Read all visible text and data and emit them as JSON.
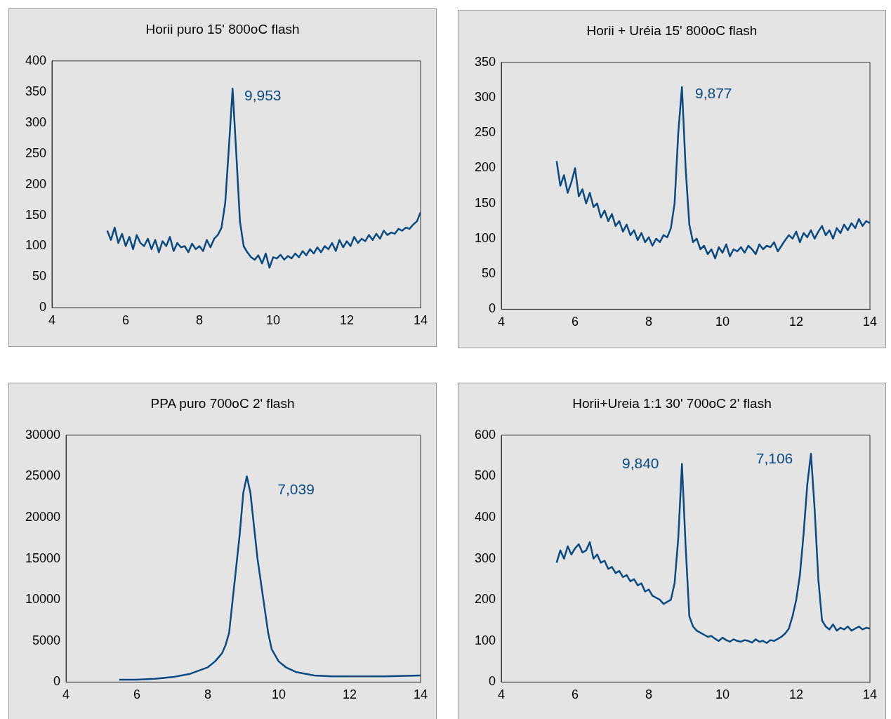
{
  "chart_data": [
    {
      "type": "line",
      "title": "Horii puro  15' 800oC flash",
      "color": "#0b4a80",
      "marker": "none",
      "xlim": [
        4,
        14
      ],
      "xticks": [
        4,
        6,
        8,
        10,
        12,
        14
      ],
      "ylim": [
        0,
        400
      ],
      "yticks": [
        0,
        50,
        100,
        150,
        200,
        250,
        300,
        350,
        400
      ],
      "x": [
        5.5,
        5.6,
        5.7,
        5.8,
        5.9,
        6.0,
        6.1,
        6.2,
        6.3,
        6.4,
        6.5,
        6.6,
        6.7,
        6.8,
        6.9,
        7.0,
        7.1,
        7.2,
        7.3,
        7.4,
        7.5,
        7.6,
        7.7,
        7.8,
        7.9,
        8.0,
        8.1,
        8.2,
        8.3,
        8.4,
        8.5,
        8.6,
        8.7,
        8.8,
        8.9,
        9.0,
        9.1,
        9.2,
        9.3,
        9.4,
        9.5,
        9.6,
        9.7,
        9.8,
        9.9,
        10.0,
        10.1,
        10.2,
        10.3,
        10.4,
        10.5,
        10.6,
        10.7,
        10.8,
        10.9,
        11.0,
        11.1,
        11.2,
        11.3,
        11.4,
        11.5,
        11.6,
        11.7,
        11.8,
        11.9,
        12.0,
        12.1,
        12.2,
        12.3,
        12.4,
        12.5,
        12.6,
        12.7,
        12.8,
        12.9,
        13.0,
        13.1,
        13.2,
        13.3,
        13.4,
        13.5,
        13.6,
        13.7,
        13.8,
        13.9,
        14.0
      ],
      "values": [
        125,
        110,
        130,
        105,
        120,
        100,
        115,
        95,
        118,
        105,
        100,
        112,
        95,
        110,
        90,
        108,
        100,
        115,
        92,
        105,
        98,
        100,
        90,
        104,
        95,
        100,
        92,
        110,
        98,
        112,
        118,
        130,
        170,
        260,
        355,
        250,
        140,
        100,
        90,
        82,
        78,
        85,
        72,
        88,
        65,
        82,
        80,
        86,
        78,
        84,
        80,
        88,
        82,
        92,
        85,
        95,
        88,
        98,
        90,
        100,
        95,
        105,
        92,
        110,
        98,
        108,
        100,
        115,
        105,
        112,
        108,
        118,
        110,
        120,
        112,
        125,
        118,
        122,
        120,
        128,
        125,
        130,
        128,
        135,
        140,
        155
      ],
      "annotations": [
        {
          "text": "9,953",
          "x": 8.9,
          "y": 355
        }
      ]
    },
    {
      "type": "line",
      "title": "Horii + Uréia 15'  800oC flash",
      "color": "#0b4a80",
      "marker": "none",
      "xlim": [
        4,
        14
      ],
      "xticks": [
        4,
        6,
        8,
        10,
        12,
        14
      ],
      "ylim": [
        0,
        350
      ],
      "yticks": [
        0,
        50,
        100,
        150,
        200,
        250,
        300,
        350
      ],
      "x": [
        5.5,
        5.6,
        5.7,
        5.8,
        5.9,
        6.0,
        6.1,
        6.2,
        6.3,
        6.4,
        6.5,
        6.6,
        6.7,
        6.8,
        6.9,
        7.0,
        7.1,
        7.2,
        7.3,
        7.4,
        7.5,
        7.6,
        7.7,
        7.8,
        7.9,
        8.0,
        8.1,
        8.2,
        8.3,
        8.4,
        8.5,
        8.6,
        8.7,
        8.8,
        8.9,
        9.0,
        9.1,
        9.2,
        9.3,
        9.4,
        9.5,
        9.6,
        9.7,
        9.8,
        9.9,
        10.0,
        10.1,
        10.2,
        10.3,
        10.4,
        10.5,
        10.6,
        10.7,
        10.8,
        10.9,
        11.0,
        11.1,
        11.2,
        11.3,
        11.4,
        11.5,
        11.6,
        11.7,
        11.8,
        11.9,
        12.0,
        12.1,
        12.2,
        12.3,
        12.4,
        12.5,
        12.6,
        12.7,
        12.8,
        12.9,
        13.0,
        13.1,
        13.2,
        13.3,
        13.4,
        13.5,
        13.6,
        13.7,
        13.8,
        13.9,
        14.0
      ],
      "values": [
        210,
        175,
        190,
        165,
        180,
        200,
        160,
        170,
        150,
        165,
        145,
        150,
        130,
        140,
        125,
        135,
        118,
        125,
        110,
        120,
        105,
        112,
        98,
        108,
        95,
        102,
        90,
        100,
        95,
        105,
        102,
        115,
        150,
        250,
        315,
        200,
        120,
        95,
        100,
        85,
        90,
        78,
        85,
        72,
        88,
        80,
        92,
        75,
        85,
        82,
        88,
        80,
        90,
        85,
        78,
        92,
        85,
        90,
        88,
        95,
        82,
        90,
        98,
        105,
        100,
        110,
        95,
        108,
        102,
        112,
        100,
        110,
        118,
        105,
        112,
        100,
        115,
        108,
        120,
        112,
        122,
        115,
        128,
        118,
        125,
        122
      ],
      "annotations": [
        {
          "text": "9,877",
          "x": 8.9,
          "y": 315
        }
      ]
    },
    {
      "type": "line",
      "title": "PPA puro 700oC 2' flash",
      "color": "#0b4a80",
      "marker": "none",
      "xlim": [
        4,
        14
      ],
      "xticks": [
        4,
        6,
        8,
        10,
        12,
        14
      ],
      "ylim": [
        0,
        30000
      ],
      "yticks": [
        0,
        5000,
        10000,
        15000,
        20000,
        25000,
        30000
      ],
      "x": [
        5.5,
        6,
        6.5,
        7,
        7.5,
        8,
        8.2,
        8.4,
        8.5,
        8.6,
        8.7,
        8.8,
        8.9,
        9.0,
        9.1,
        9.2,
        9.3,
        9.4,
        9.5,
        9.6,
        9.7,
        9.8,
        10,
        10.2,
        10.5,
        11,
        11.5,
        12,
        13,
        14
      ],
      "values": [
        300,
        300,
        400,
        600,
        1000,
        1800,
        2500,
        3500,
        4500,
        6000,
        10000,
        14000,
        18000,
        23000,
        25000,
        23000,
        19000,
        15000,
        12000,
        9000,
        6000,
        4000,
        2500,
        1800,
        1200,
        800,
        700,
        700,
        700,
        800
      ],
      "annotations": [
        {
          "text": "7,039",
          "x": 9.1,
          "y": 25000
        }
      ]
    },
    {
      "type": "line",
      "title": "Horii+Ureia 1:1 30' 700oC 2' flash",
      "color": "#0b4a80",
      "marker": "none",
      "xlim": [
        4,
        14
      ],
      "xticks": [
        4,
        6,
        8,
        10,
        12,
        14
      ],
      "ylim": [
        0,
        600
      ],
      "yticks": [
        0,
        100,
        200,
        300,
        400,
        500,
        600
      ],
      "x": [
        5.5,
        5.6,
        5.7,
        5.8,
        5.9,
        6.0,
        6.1,
        6.2,
        6.3,
        6.4,
        6.5,
        6.6,
        6.7,
        6.8,
        6.9,
        7.0,
        7.1,
        7.2,
        7.3,
        7.4,
        7.5,
        7.6,
        7.7,
        7.8,
        7.9,
        8.0,
        8.1,
        8.2,
        8.3,
        8.4,
        8.5,
        8.6,
        8.7,
        8.8,
        8.9,
        9.0,
        9.1,
        9.2,
        9.3,
        9.4,
        9.5,
        9.6,
        9.7,
        9.8,
        9.9,
        10.0,
        10.1,
        10.2,
        10.3,
        10.4,
        10.5,
        10.6,
        10.7,
        10.8,
        10.9,
        11.0,
        11.1,
        11.2,
        11.3,
        11.4,
        11.5,
        11.6,
        11.7,
        11.8,
        11.9,
        12.0,
        12.1,
        12.2,
        12.3,
        12.4,
        12.5,
        12.6,
        12.7,
        12.8,
        12.9,
        13.0,
        13.1,
        13.2,
        13.3,
        13.4,
        13.5,
        13.6,
        13.7,
        13.8,
        13.9,
        14.0
      ],
      "values": [
        290,
        320,
        300,
        330,
        310,
        325,
        335,
        315,
        320,
        340,
        300,
        310,
        290,
        295,
        275,
        280,
        265,
        270,
        255,
        260,
        245,
        250,
        235,
        240,
        220,
        225,
        210,
        205,
        200,
        190,
        195,
        200,
        240,
        350,
        530,
        330,
        160,
        135,
        125,
        120,
        115,
        110,
        112,
        105,
        100,
        108,
        102,
        98,
        104,
        100,
        98,
        102,
        100,
        96,
        104,
        98,
        100,
        95,
        102,
        100,
        105,
        110,
        118,
        130,
        160,
        200,
        260,
        360,
        480,
        555,
        420,
        250,
        150,
        135,
        128,
        140,
        125,
        132,
        128,
        135,
        125,
        130,
        135,
        128,
        132,
        130
      ],
      "annotations": [
        {
          "text": "9,840",
          "x": 8.9,
          "y": 530
        },
        {
          "text": "7,106",
          "x": 12.4,
          "y": 555
        }
      ]
    }
  ]
}
